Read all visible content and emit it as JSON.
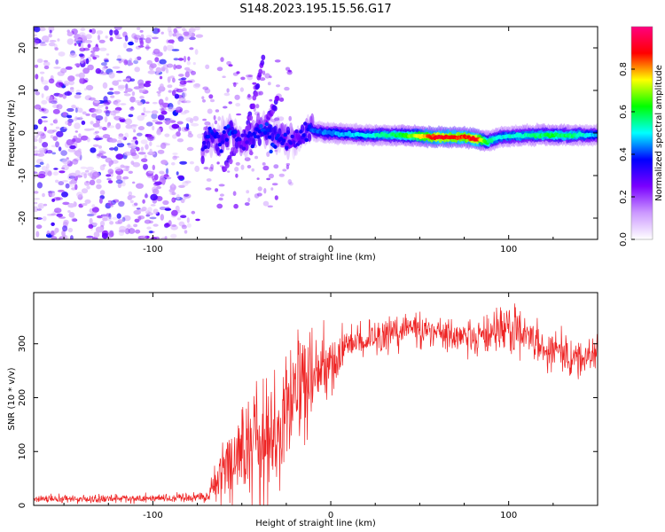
{
  "page_title": "S148.2023.195.15.56.G17",
  "chart_data": [
    {
      "type": "heatmap",
      "name": "spectrogram",
      "xlabel": "Height of straight line (km)",
      "ylabel": "Frequency (Hz)",
      "xlim": [
        -167,
        150
      ],
      "ylim": [
        -25,
        25
      ],
      "xticks": [
        -100,
        0,
        100
      ],
      "yticks": [
        -20,
        -10,
        0,
        10,
        20
      ],
      "colorbar": {
        "label": "Normalized spectral amplitude",
        "range": [
          0,
          1
        ],
        "ticks": [
          0.0,
          0.2,
          0.4,
          0.6,
          0.8
        ],
        "tick_labels": [
          "0.0",
          "0.2",
          "0.4",
          "0.6",
          "0.8"
        ],
        "colormap": [
          "#ffffff",
          "#cc99ff",
          "#7a00ff",
          "#0000ff",
          "#00ffff",
          "#00ff00",
          "#ffff00",
          "#ff0000",
          "#ff0080"
        ]
      },
      "noise_region_x": [
        -167,
        -72
      ],
      "ridge": [
        {
          "x": -72,
          "f": -4,
          "a": 0.35
        },
        {
          "x": -68,
          "f": 0,
          "a": 0.4
        },
        {
          "x": -62,
          "f": -2,
          "a": 0.35
        },
        {
          "x": -56,
          "f": 1,
          "a": 0.4
        },
        {
          "x": -50,
          "f": -3,
          "a": 0.3
        },
        {
          "x": -44,
          "f": -1,
          "a": 0.35
        },
        {
          "x": -38,
          "f": 1,
          "a": 0.4
        },
        {
          "x": -32,
          "f": -1,
          "a": 0.4
        },
        {
          "x": -25,
          "f": -1,
          "a": 0.35
        },
        {
          "x": -20,
          "f": -2,
          "a": 0.3
        },
        {
          "x": -15,
          "f": 0,
          "a": 0.35
        },
        {
          "x": -10,
          "f": 0.5,
          "a": 0.4
        },
        {
          "x": 0,
          "f": 0,
          "a": 0.45
        },
        {
          "x": 20,
          "f": -0.5,
          "a": 0.5
        },
        {
          "x": 40,
          "f": -0.5,
          "a": 0.6
        },
        {
          "x": 60,
          "f": -1,
          "a": 0.9
        },
        {
          "x": 75,
          "f": -1,
          "a": 0.85
        },
        {
          "x": 82,
          "f": -1.5,
          "a": 0.9
        },
        {
          "x": 88,
          "f": -2,
          "a": 0.6
        },
        {
          "x": 95,
          "f": -1,
          "a": 0.5
        },
        {
          "x": 110,
          "f": -0.5,
          "a": 0.55
        },
        {
          "x": 125,
          "f": -0.5,
          "a": 0.6
        },
        {
          "x": 140,
          "f": -0.5,
          "a": 0.55
        },
        {
          "x": 150,
          "f": -0.5,
          "a": 0.45
        }
      ],
      "streaks": [
        {
          "x1": -50,
          "f1": -4,
          "x2": -38,
          "f2": 17
        },
        {
          "x1": -40,
          "f1": 0,
          "x2": -30,
          "f2": 7
        },
        {
          "x1": -60,
          "f1": -8,
          "x2": -45,
          "f2": 2
        }
      ]
    },
    {
      "type": "line",
      "name": "snr",
      "xlabel": "Height of straight line (km)",
      "ylabel": "SNR (10 * v/v)",
      "xlim": [
        -167,
        150
      ],
      "ylim": [
        0,
        395
      ],
      "xticks": [
        -100,
        0,
        100
      ],
      "yticks": [
        0,
        100,
        200,
        300
      ],
      "color": "#ee2222",
      "envelope": [
        {
          "x": -167,
          "mean": 12,
          "noise": 6
        },
        {
          "x": -120,
          "mean": 12,
          "noise": 6
        },
        {
          "x": -70,
          "mean": 15,
          "noise": 7
        },
        {
          "x": -62,
          "mean": 60,
          "noise": 40
        },
        {
          "x": -50,
          "mean": 90,
          "noise": 70
        },
        {
          "x": -40,
          "mean": 110,
          "noise": 80
        },
        {
          "x": -30,
          "mean": 150,
          "noise": 90
        },
        {
          "x": -20,
          "mean": 200,
          "noise": 90
        },
        {
          "x": -10,
          "mean": 240,
          "noise": 60
        },
        {
          "x": 0,
          "mean": 260,
          "noise": 40
        },
        {
          "x": 10,
          "mean": 300,
          "noise": 30
        },
        {
          "x": 30,
          "mean": 320,
          "noise": 25
        },
        {
          "x": 50,
          "mean": 330,
          "noise": 25
        },
        {
          "x": 70,
          "mean": 310,
          "noise": 25
        },
        {
          "x": 90,
          "mean": 320,
          "noise": 30
        },
        {
          "x": 100,
          "mean": 330,
          "noise": 45
        },
        {
          "x": 120,
          "mean": 290,
          "noise": 30
        },
        {
          "x": 140,
          "mean": 270,
          "noise": 30
        },
        {
          "x": 150,
          "mean": 290,
          "noise": 25
        }
      ]
    }
  ]
}
